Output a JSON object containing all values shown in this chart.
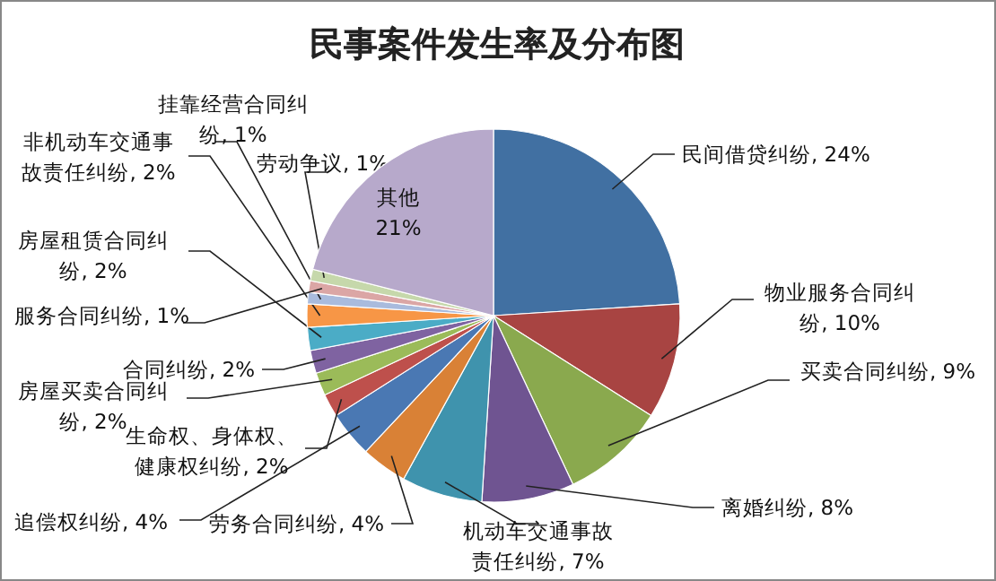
{
  "chart_data": {
    "type": "pie",
    "title": "民事案件发生率及分布图",
    "categories": [
      "民间借贷纠纷",
      "物业服务合同纠纷",
      "买卖合同纠纷",
      "离婚纠纷",
      "机动车交通事故责任纠纷",
      "劳务合同纠纷",
      "追偿权纠纷",
      "生命权、身体权、健康权纠纷",
      "房屋买卖合同纠纷",
      "合同纠纷",
      "房屋租赁合同纠纷",
      "非机动车交通事故责任纠纷",
      "挂靠经营合同纠纷",
      "服务合同纠纷",
      "劳动争议",
      "其他"
    ],
    "values": [
      24,
      10,
      9,
      8,
      7,
      4,
      4,
      2,
      2,
      2,
      2,
      2,
      1,
      1,
      1,
      21
    ],
    "value_labels": [
      "24%",
      "10%",
      "9%",
      "8%",
      "7%",
      "4%",
      "4%",
      "2%",
      "2%",
      "2%",
      "2%",
      "2%",
      "1%",
      "1%",
      "1%",
      "21%"
    ],
    "colors": [
      "#4170a2",
      "#a84442",
      "#8aa94e",
      "#6f5491",
      "#3f93ad",
      "#d98136",
      "#4a78b3",
      "#be504c",
      "#9bbb59",
      "#7f63a1",
      "#4bacc6",
      "#f79646",
      "#a9bbdd",
      "#dba6a5",
      "#c6d8ab",
      "#b7a9cb"
    ],
    "legend": false
  }
}
